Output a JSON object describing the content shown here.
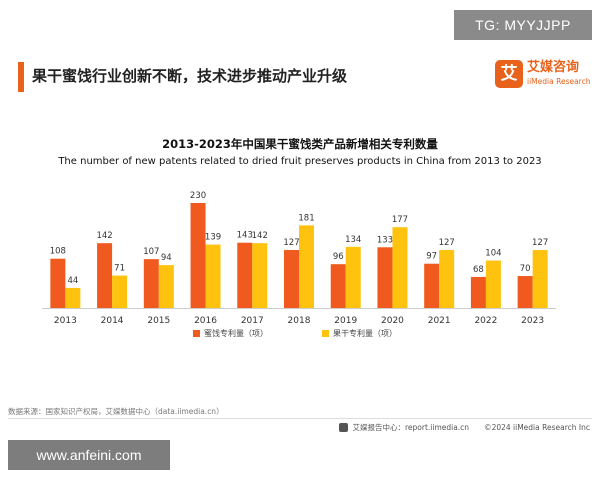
{
  "watermarks": {
    "top": "TG: MYYJJPP",
    "bottom": "www.anfeini.com"
  },
  "header": {
    "title": "果干蜜饯行业创新不断，技术进步推动产业升级"
  },
  "logo": {
    "mark": "艾",
    "name": "艾媒咨询",
    "sub": "iiMedia Research"
  },
  "colors": {
    "accent": "#e8621c",
    "series1": "#f05a1e",
    "series2": "#ffc20e"
  },
  "chart_data": {
    "type": "bar",
    "title": "2013-2023年中国果干蜜饯类产品新增相关专利数量",
    "subtitle": "The number of new patents related to dried fruit preserves products in China from 2013 to 2023",
    "categories": [
      "2013",
      "2014",
      "2015",
      "2016",
      "2017",
      "2018",
      "2019",
      "2020",
      "2021",
      "2022",
      "2023"
    ],
    "series": [
      {
        "name": "蜜饯专利量（项）",
        "color": "#f05a1e",
        "values": [
          108,
          142,
          107,
          230,
          143,
          127,
          96,
          133,
          97,
          68,
          70
        ]
      },
      {
        "name": "果干专利量（项）",
        "color": "#ffc20e",
        "values": [
          44,
          71,
          94,
          139,
          142,
          181,
          134,
          177,
          127,
          104,
          127
        ]
      }
    ],
    "ylim": [
      0,
      230
    ],
    "grid": false,
    "legend": "bottom-left"
  },
  "footer": {
    "source": "数据来源：国家知识产权局，艾媒数据中心（data.iimedia.cn）",
    "right": "艾媒报告中心：report.iimedia.cn　　©2024 iiMedia Research Inc"
  }
}
